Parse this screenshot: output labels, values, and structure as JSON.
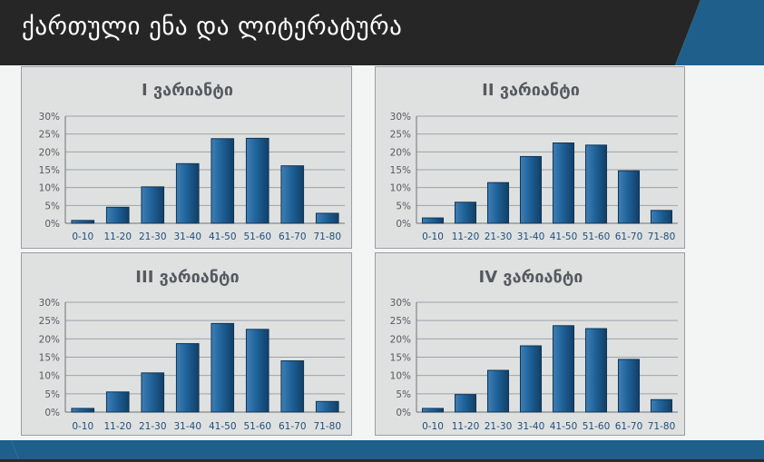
{
  "header": {
    "title": "ქართული ენა და ლიტერატურა"
  },
  "colors": {
    "header_bg": "#262626",
    "accent_blue": "#1f5f8b",
    "bar_fill": "#1d5c8c",
    "panel_bg": "#dfe1e1"
  },
  "chart_data": [
    {
      "type": "bar",
      "title": "I ვარიანტი",
      "categories": [
        "0-10",
        "11-20",
        "21-30",
        "31-40",
        "41-50",
        "51-60",
        "61-70",
        "71-80"
      ],
      "values": [
        0.8,
        4.5,
        10.2,
        16.7,
        23.7,
        23.8,
        16.1,
        2.8
      ],
      "ylim": [
        0,
        30
      ],
      "yticks": [
        "0%",
        "5%",
        "10%",
        "15%",
        "20%",
        "25%",
        "30%"
      ],
      "grid": true
    },
    {
      "type": "bar",
      "title": "II ვარიანტი",
      "categories": [
        "0-10",
        "11-20",
        "21-30",
        "31-40",
        "41-50",
        "51-60",
        "61-70",
        "71-80"
      ],
      "values": [
        1.5,
        5.9,
        11.4,
        18.7,
        22.5,
        21.9,
        14.7,
        3.6
      ],
      "ylim": [
        0,
        30
      ],
      "yticks": [
        "0%",
        "5%",
        "10%",
        "15%",
        "20%",
        "25%",
        "30%"
      ],
      "grid": true
    },
    {
      "type": "bar",
      "title": "III ვარიანტი",
      "categories": [
        "0-10",
        "11-20",
        "21-30",
        "31-40",
        "41-50",
        "51-60",
        "61-70",
        "71-80"
      ],
      "values": [
        1.0,
        5.5,
        10.7,
        18.7,
        24.2,
        22.6,
        14.0,
        2.9
      ],
      "ylim": [
        0,
        30
      ],
      "yticks": [
        "0%",
        "5%",
        "10%",
        "15%",
        "20%",
        "25%",
        "30%"
      ],
      "grid": true
    },
    {
      "type": "bar",
      "title": "IV ვარიანტი",
      "categories": [
        "0-10",
        "11-20",
        "21-30",
        "31-40",
        "41-50",
        "51-60",
        "61-70",
        "71-80"
      ],
      "values": [
        1.0,
        4.8,
        11.4,
        18.1,
        23.6,
        22.8,
        14.4,
        3.4
      ],
      "ylim": [
        0,
        30
      ],
      "yticks": [
        "0%",
        "5%",
        "10%",
        "15%",
        "20%",
        "25%",
        "30%"
      ],
      "grid": true
    }
  ]
}
